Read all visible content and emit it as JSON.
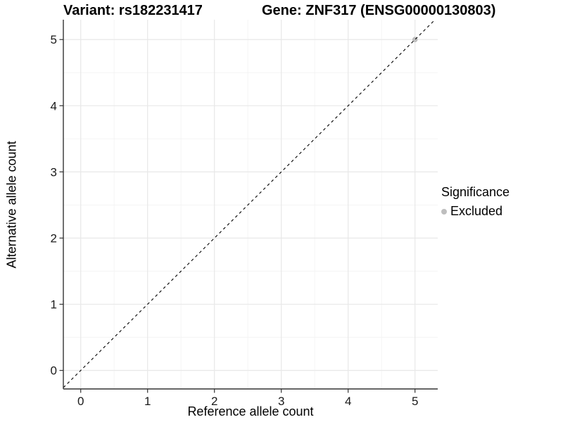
{
  "style": {
    "background": "#ffffff",
    "grid_major": "#e8e8e8",
    "grid_minor": "#f3f3f3",
    "axis_line": "#333333",
    "tick_label_color": "#1a1a1a",
    "text_color": "#000000"
  },
  "chart_data": {
    "type": "scatter",
    "title_left": "Variant: rs182231417",
    "title_right": "Gene: ZNF317 (ENSG00000130803)",
    "xlabel": "Reference allele count",
    "ylabel": "Alternative allele count",
    "xlim": [
      -0.26,
      5.34
    ],
    "ylim": [
      -0.28,
      5.3
    ],
    "x_ticks": [
      0,
      1,
      2,
      3,
      4,
      5
    ],
    "y_ticks": [
      0,
      1,
      2,
      3,
      4,
      5
    ],
    "x_minor_ticks": [
      0.5,
      1.5,
      2.5,
      3.5,
      4.5
    ],
    "y_minor_ticks": [
      0.5,
      1.5,
      2.5,
      3.5,
      4.5
    ],
    "grid": "major+minor",
    "series": [
      {
        "name": "Excluded",
        "color": "#bebebe",
        "points": [
          {
            "x": 5,
            "y": 5
          }
        ]
      }
    ],
    "reference_line": {
      "slope": 1,
      "intercept": 0,
      "linetype": "dashed",
      "color": "#000000"
    },
    "legend": {
      "title": "Significance",
      "position": "right",
      "items": [
        {
          "label": "Excluded",
          "color": "#bebebe",
          "marker": "circle"
        }
      ]
    }
  }
}
